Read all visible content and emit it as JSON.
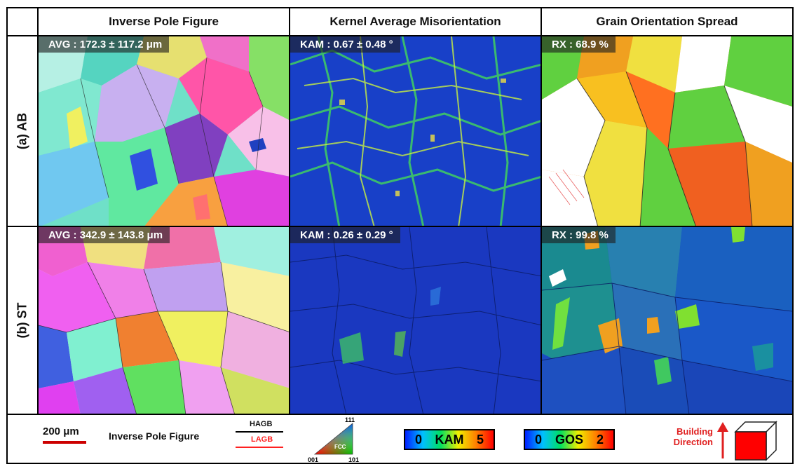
{
  "columns": [
    "Inverse Pole Figure",
    "Kernel Average Misorientation",
    "Grain Orientation Spread"
  ],
  "rows": [
    {
      "label": "(a) AB",
      "ipf_label": "AVG : 172.3 ± 117.2 μm",
      "kam_label": "KAM : 0.67 ± 0.48 °",
      "gos_label": "RX : 68.9 %"
    },
    {
      "label": "(b) ST",
      "ipf_label": "AVG : 342.9 ± 143.8 μm",
      "kam_label": "KAM : 0.26 ± 0.29 °",
      "gos_label": "RX : 99.8 %"
    }
  ],
  "legend": {
    "scale_bar": "200 μm",
    "ipf_title": "Inverse Pole Figure",
    "hagb": "HAGB",
    "lagb": "LAGB",
    "triangle_111": "111",
    "triangle_001": "001",
    "triangle_101": "101",
    "triangle_fcc": "FCC",
    "kam_min": "0",
    "kam_name": "KAM",
    "kam_max": "5",
    "gos_min": "0",
    "gos_name": "GOS",
    "gos_max": "2",
    "building_line1": "Building",
    "building_line2": "Direction"
  },
  "colors": {
    "scale_bar": "#cc0000",
    "lagb": "#ff2020",
    "building": "#e02020",
    "cube": "#ff0000"
  }
}
